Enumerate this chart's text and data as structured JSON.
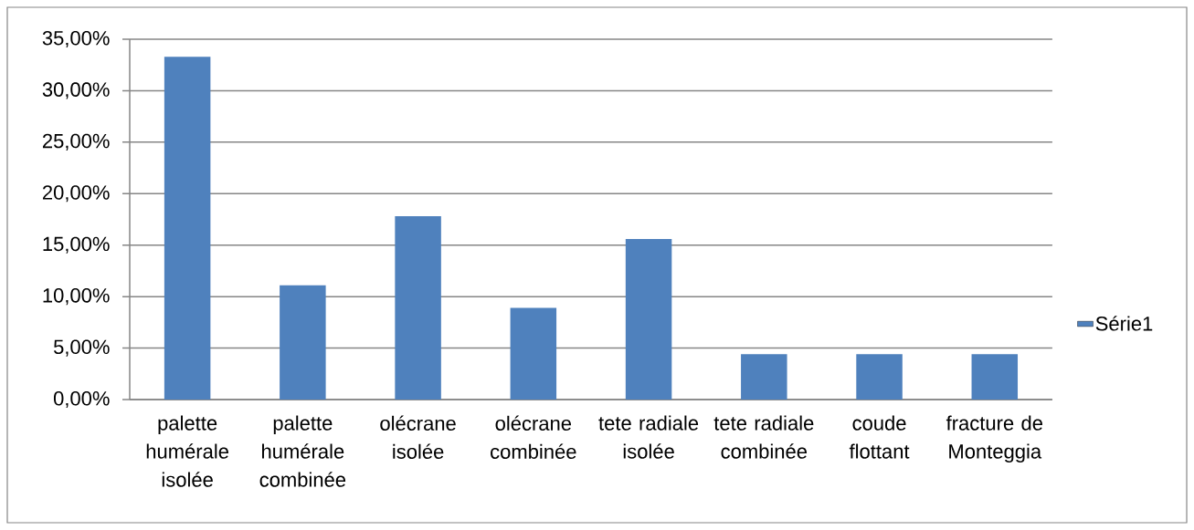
{
  "chart_data": {
    "type": "bar",
    "categories": [
      "palette humérale isolée",
      "palette humérale combinée",
      "olécrane isolée",
      "olécrane combinée",
      "tete radiale isolée",
      "tete radiale combinée",
      "coude flottant",
      "fracture de Monteggia"
    ],
    "series": [
      {
        "name": "Série1",
        "color": "#4f81bd",
        "values": [
          33.3,
          11.1,
          17.8,
          8.9,
          15.6,
          4.4,
          4.4,
          4.4
        ]
      }
    ],
    "ylim": [
      0,
      35
    ],
    "yticks": [
      {
        "value": 0,
        "label": "0,00%"
      },
      {
        "value": 5,
        "label": "5,00%"
      },
      {
        "value": 10,
        "label": "10,00%"
      },
      {
        "value": 15,
        "label": "15,00%"
      },
      {
        "value": 20,
        "label": "20,00%"
      },
      {
        "value": 25,
        "label": "25,00%"
      },
      {
        "value": 30,
        "label": "30,00%"
      },
      {
        "value": 35,
        "label": "35,00%"
      }
    ],
    "grid": "y",
    "legend": "right"
  }
}
